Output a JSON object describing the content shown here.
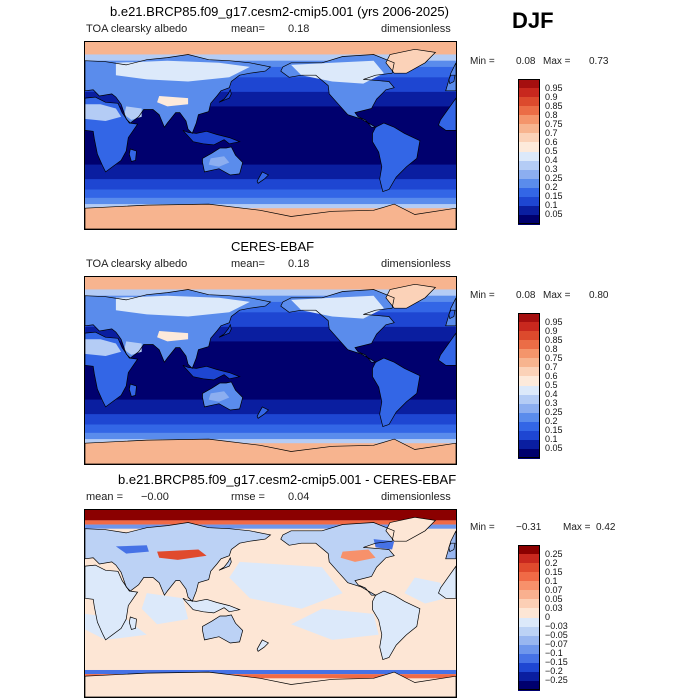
{
  "season": "DJF",
  "colors": {
    "darkred": "#8b0000",
    "darkblue": "#00008b",
    "coast": "#000000"
  },
  "panels": [
    {
      "title": "b.e21.BRCP85.f09_g17.cesm2-cmip5.001 (yrs 2006-2025)",
      "left_label": "TOA clearsky albedo",
      "mean_label": "mean=",
      "mean_value": "0.18",
      "units": "dimensionless",
      "min_label": "Min =",
      "min_value": "0.08",
      "max_label": "Max =",
      "max_value": "0.73",
      "colorbar": {
        "labels": [
          "0.95",
          "0.9",
          "0.85",
          "0.8",
          "0.75",
          "0.7",
          "0.6",
          "0.5",
          "0.4",
          "0.3",
          "0.25",
          "0.2",
          "0.15",
          "0.1",
          "0.05"
        ],
        "colors": [
          "#a50f0f",
          "#c8281e",
          "#dc4a2d",
          "#eb6d46",
          "#f4956b",
          "#f7b48f",
          "#fbd2b8",
          "#fdeadb",
          "#dce9fa",
          "#b4ccf5",
          "#8caef0",
          "#5a8cec",
          "#3366e6",
          "#1e46d2",
          "#0a1ea0",
          "#00006e"
        ]
      }
    },
    {
      "title": "CERES-EBAF",
      "left_label": "TOA clearsky albedo",
      "mean_label": "mean=",
      "mean_value": "0.18",
      "units": "dimensionless",
      "min_label": "Min =",
      "min_value": "0.08",
      "max_label": "Max =",
      "max_value": "0.80",
      "colorbar": {
        "labels": [
          "0.95",
          "0.9",
          "0.85",
          "0.8",
          "0.75",
          "0.7",
          "0.6",
          "0.5",
          "0.4",
          "0.3",
          "0.25",
          "0.2",
          "0.15",
          "0.1",
          "0.05"
        ],
        "colors": [
          "#a50f0f",
          "#c8281e",
          "#dc4a2d",
          "#eb6d46",
          "#f4956b",
          "#f7b48f",
          "#fbd2b8",
          "#fdeadb",
          "#dce9fa",
          "#b4ccf5",
          "#8caef0",
          "#5a8cec",
          "#3366e6",
          "#1e46d2",
          "#0a1ea0",
          "#00006e"
        ]
      }
    },
    {
      "title": "b.e21.BRCP85.f09_g17.cesm2-cmip5.001 - CERES-EBAF",
      "left_label": "mean =",
      "mean_label": "",
      "mean_value": "−0.00",
      "rmse_label": "rmse =",
      "rmse_value": "0.04",
      "units": "dimensionless",
      "min_label": "Min =",
      "min_value": "−0.31",
      "max_label": "Max =",
      "max_value": "0.42",
      "colorbar": {
        "labels": [
          "0.25",
          "0.2",
          "0.15",
          "0.1",
          "0.07",
          "0.05",
          "0.03",
          "0",
          "−0.03",
          "−0.05",
          "−0.07",
          "−0.1",
          "−0.15",
          "−0.2",
          "−0.25"
        ],
        "colors": [
          "#8b0000",
          "#c8281e",
          "#e04a2d",
          "#f06a46",
          "#f7916b",
          "#f9b08f",
          "#fccfb5",
          "#fde6d5",
          "#dce9fa",
          "#bcd2f5",
          "#98b6f0",
          "#6e96ec",
          "#4672e6",
          "#1e46d2",
          "#0a1ea0",
          "#00006e"
        ]
      }
    }
  ]
}
